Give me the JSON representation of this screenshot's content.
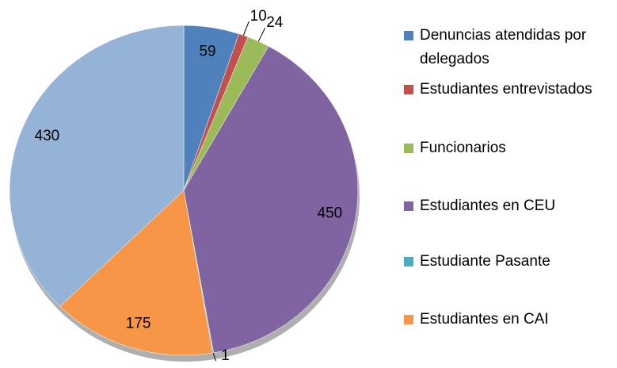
{
  "chart_data": {
    "type": "pie",
    "categories": [
      "Denuncias atendidas por delegados",
      "Estudiantes entrevistados",
      "Funcionarios",
      "Estudiantes en CEU",
      "Estudiante Pasante",
      "Estudiantes en CAI",
      null
    ],
    "values": [
      59,
      10,
      24,
      450,
      1,
      175,
      430
    ],
    "colors": [
      "#4f81bd",
      "#c0504d",
      "#9bbb59",
      "#8064a2",
      "#4bacc6",
      "#f79646",
      "#95b3d7"
    ],
    "legend": "right"
  }
}
